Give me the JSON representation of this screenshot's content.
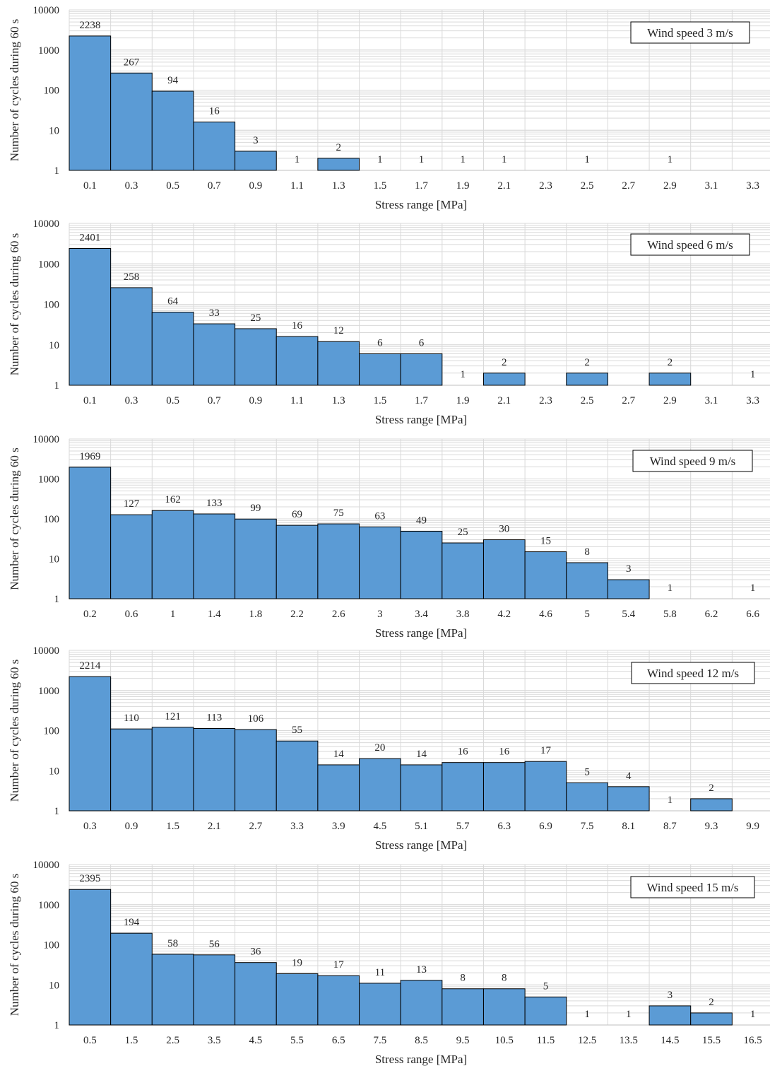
{
  "colors": {
    "bar_fill": "#5b9bd5",
    "bar_edge": "#000000",
    "grid": "#d9d9d9",
    "text": "#262626",
    "background": "#ffffff"
  },
  "chart_data": [
    {
      "type": "bar",
      "title": "Wind speed 3 m/s",
      "xlabel": "Stress range [MPa]",
      "ylabel": "Number of cycles during 60 s",
      "yscale": "log",
      "ylim": [
        1,
        10000
      ],
      "yticks": [
        "1",
        "10",
        "100",
        "1000",
        "10000"
      ],
      "grid": true,
      "legend_position": "top-right",
      "categories": [
        "0.1",
        "0.3",
        "0.5",
        "0.7",
        "0.9",
        "1.1",
        "1.3",
        "1.5",
        "1.7",
        "1.9",
        "2.1",
        "2.3",
        "2.5",
        "2.7",
        "2.9",
        "3.1",
        "3.3"
      ],
      "values": [
        2238,
        267,
        94,
        16,
        3,
        1,
        2,
        1,
        1,
        1,
        1,
        null,
        1,
        null,
        1,
        null,
        null
      ]
    },
    {
      "type": "bar",
      "title": "Wind speed 6 m/s",
      "xlabel": "Stress range [MPa]",
      "ylabel": "Number of cycles during 60 s",
      "yscale": "log",
      "ylim": [
        1,
        10000
      ],
      "yticks": [
        "1",
        "10",
        "100",
        "1000",
        "10000"
      ],
      "grid": true,
      "legend_position": "top-right",
      "categories": [
        "0.1",
        "0.3",
        "0.5",
        "0.7",
        "0.9",
        "1.1",
        "1.3",
        "1.5",
        "1.7",
        "1.9",
        "2.1",
        "2.3",
        "2.5",
        "2.7",
        "2.9",
        "3.1",
        "3.3"
      ],
      "values": [
        2401,
        258,
        64,
        33,
        25,
        16,
        12,
        6,
        6,
        1,
        2,
        null,
        2,
        null,
        2,
        null,
        1
      ]
    },
    {
      "type": "bar",
      "title": "Wind speed 9 m/s",
      "xlabel": "Stress range [MPa]",
      "ylabel": "Number of cycles during 60 s",
      "yscale": "log",
      "ylim": [
        1,
        10000
      ],
      "yticks": [
        "1",
        "10",
        "100",
        "1000",
        "10000"
      ],
      "grid": true,
      "legend_position": "top-right",
      "categories": [
        "0.2",
        "0.6",
        "1",
        "1.4",
        "1.8",
        "2.2",
        "2.6",
        "3",
        "3.4",
        "3.8",
        "4.2",
        "4.6",
        "5",
        "5.4",
        "5.8",
        "6.2",
        "6.6"
      ],
      "values": [
        1969,
        127,
        162,
        133,
        99,
        69,
        75,
        63,
        49,
        25,
        30,
        15,
        8,
        3,
        1,
        null,
        1
      ]
    },
    {
      "type": "bar",
      "title": "Wind speed 12 m/s",
      "xlabel": "Stress range [MPa]",
      "ylabel": "Number of cycles during 60 s",
      "yscale": "log",
      "ylim": [
        1,
        10000
      ],
      "yticks": [
        "1",
        "10",
        "100",
        "1000",
        "10000"
      ],
      "grid": true,
      "legend_position": "top-right",
      "categories": [
        "0.3",
        "0.9",
        "1.5",
        "2.1",
        "2.7",
        "3.3",
        "3.9",
        "4.5",
        "5.1",
        "5.7",
        "6.3",
        "6.9",
        "7.5",
        "8.1",
        "8.7",
        "9.3",
        "9.9"
      ],
      "values": [
        2214,
        110,
        121,
        113,
        106,
        55,
        14,
        20,
        14,
        16,
        16,
        17,
        5,
        4,
        1,
        2,
        null
      ]
    },
    {
      "type": "bar",
      "title": "Wind speed 15 m/s",
      "xlabel": "Stress range [MPa]",
      "ylabel": "Number of cycles during 60 s",
      "yscale": "log",
      "ylim": [
        1,
        10000
      ],
      "yticks": [
        "1",
        "10",
        "100",
        "1000",
        "10000"
      ],
      "grid": true,
      "legend_position": "top-right",
      "categories": [
        "0.5",
        "1.5",
        "2.5",
        "3.5",
        "4.5",
        "5.5",
        "6.5",
        "7.5",
        "8.5",
        "9.5",
        "10.5",
        "11.5",
        "12.5",
        "13.5",
        "14.5",
        "15.5",
        "16.5"
      ],
      "values": [
        2395,
        194,
        58,
        56,
        36,
        19,
        17,
        11,
        13,
        8,
        8,
        5,
        1,
        1,
        3,
        2,
        1
      ]
    }
  ]
}
